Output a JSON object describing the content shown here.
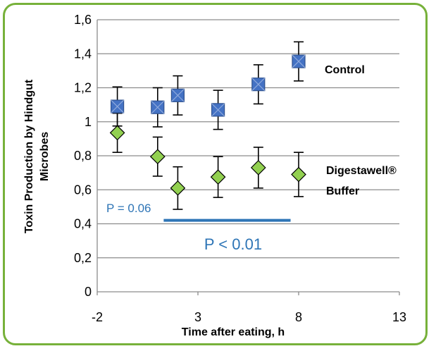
{
  "chart_data": {
    "type": "scatter",
    "xlabel": "Time after eating, h",
    "ylabel_lines": [
      "Toxin Production by Hindgut",
      "Microbes"
    ],
    "xlim": [
      -2,
      13
    ],
    "ylim": [
      0,
      1.6
    ],
    "x_ticks": [
      -2,
      3,
      8,
      13
    ],
    "x_tick_labels": [
      "-2",
      "3",
      "8",
      "13"
    ],
    "y_ticks": [
      0,
      0.2,
      0.4,
      0.6,
      0.8,
      1.0,
      1.2,
      1.4,
      1.6
    ],
    "y_tick_labels": [
      "0",
      "0,2",
      "0,4",
      "0,6",
      "0,8",
      "1",
      "1,2",
      "1,4",
      "1,6"
    ],
    "grid": "horizontal",
    "series": [
      {
        "name": "Control",
        "marker": "square",
        "color": "#4472c4",
        "points": [
          {
            "x": -1,
            "y": 1.09,
            "err": 0.115
          },
          {
            "x": 1,
            "y": 1.085,
            "err": 0.115
          },
          {
            "x": 2,
            "y": 1.155,
            "err": 0.115
          },
          {
            "x": 4,
            "y": 1.07,
            "err": 0.115
          },
          {
            "x": 6,
            "y": 1.22,
            "err": 0.115
          },
          {
            "x": 8,
            "y": 1.355,
            "err": 0.115
          }
        ]
      },
      {
        "name_lines": [
          "Digestawell®",
          "Buffer"
        ],
        "marker": "diamond",
        "color": "#92d050",
        "points": [
          {
            "x": -1,
            "y": 0.935,
            "err": 0.115
          },
          {
            "x": 1,
            "y": 0.795,
            "err": 0.115
          },
          {
            "x": 2,
            "y": 0.61,
            "err": 0.125
          },
          {
            "x": 4,
            "y": 0.675,
            "err": 0.12
          },
          {
            "x": 6,
            "y": 0.73,
            "err": 0.12
          },
          {
            "x": 8,
            "y": 0.69,
            "err": 0.13
          }
        ]
      }
    ],
    "annotations": {
      "p_small": "P = 0.06",
      "p_big": "P < 0.01",
      "significance_bar": {
        "x_from": 1.3,
        "x_to": 7.6,
        "y": 0.42,
        "color": "#2e75b6"
      }
    }
  }
}
